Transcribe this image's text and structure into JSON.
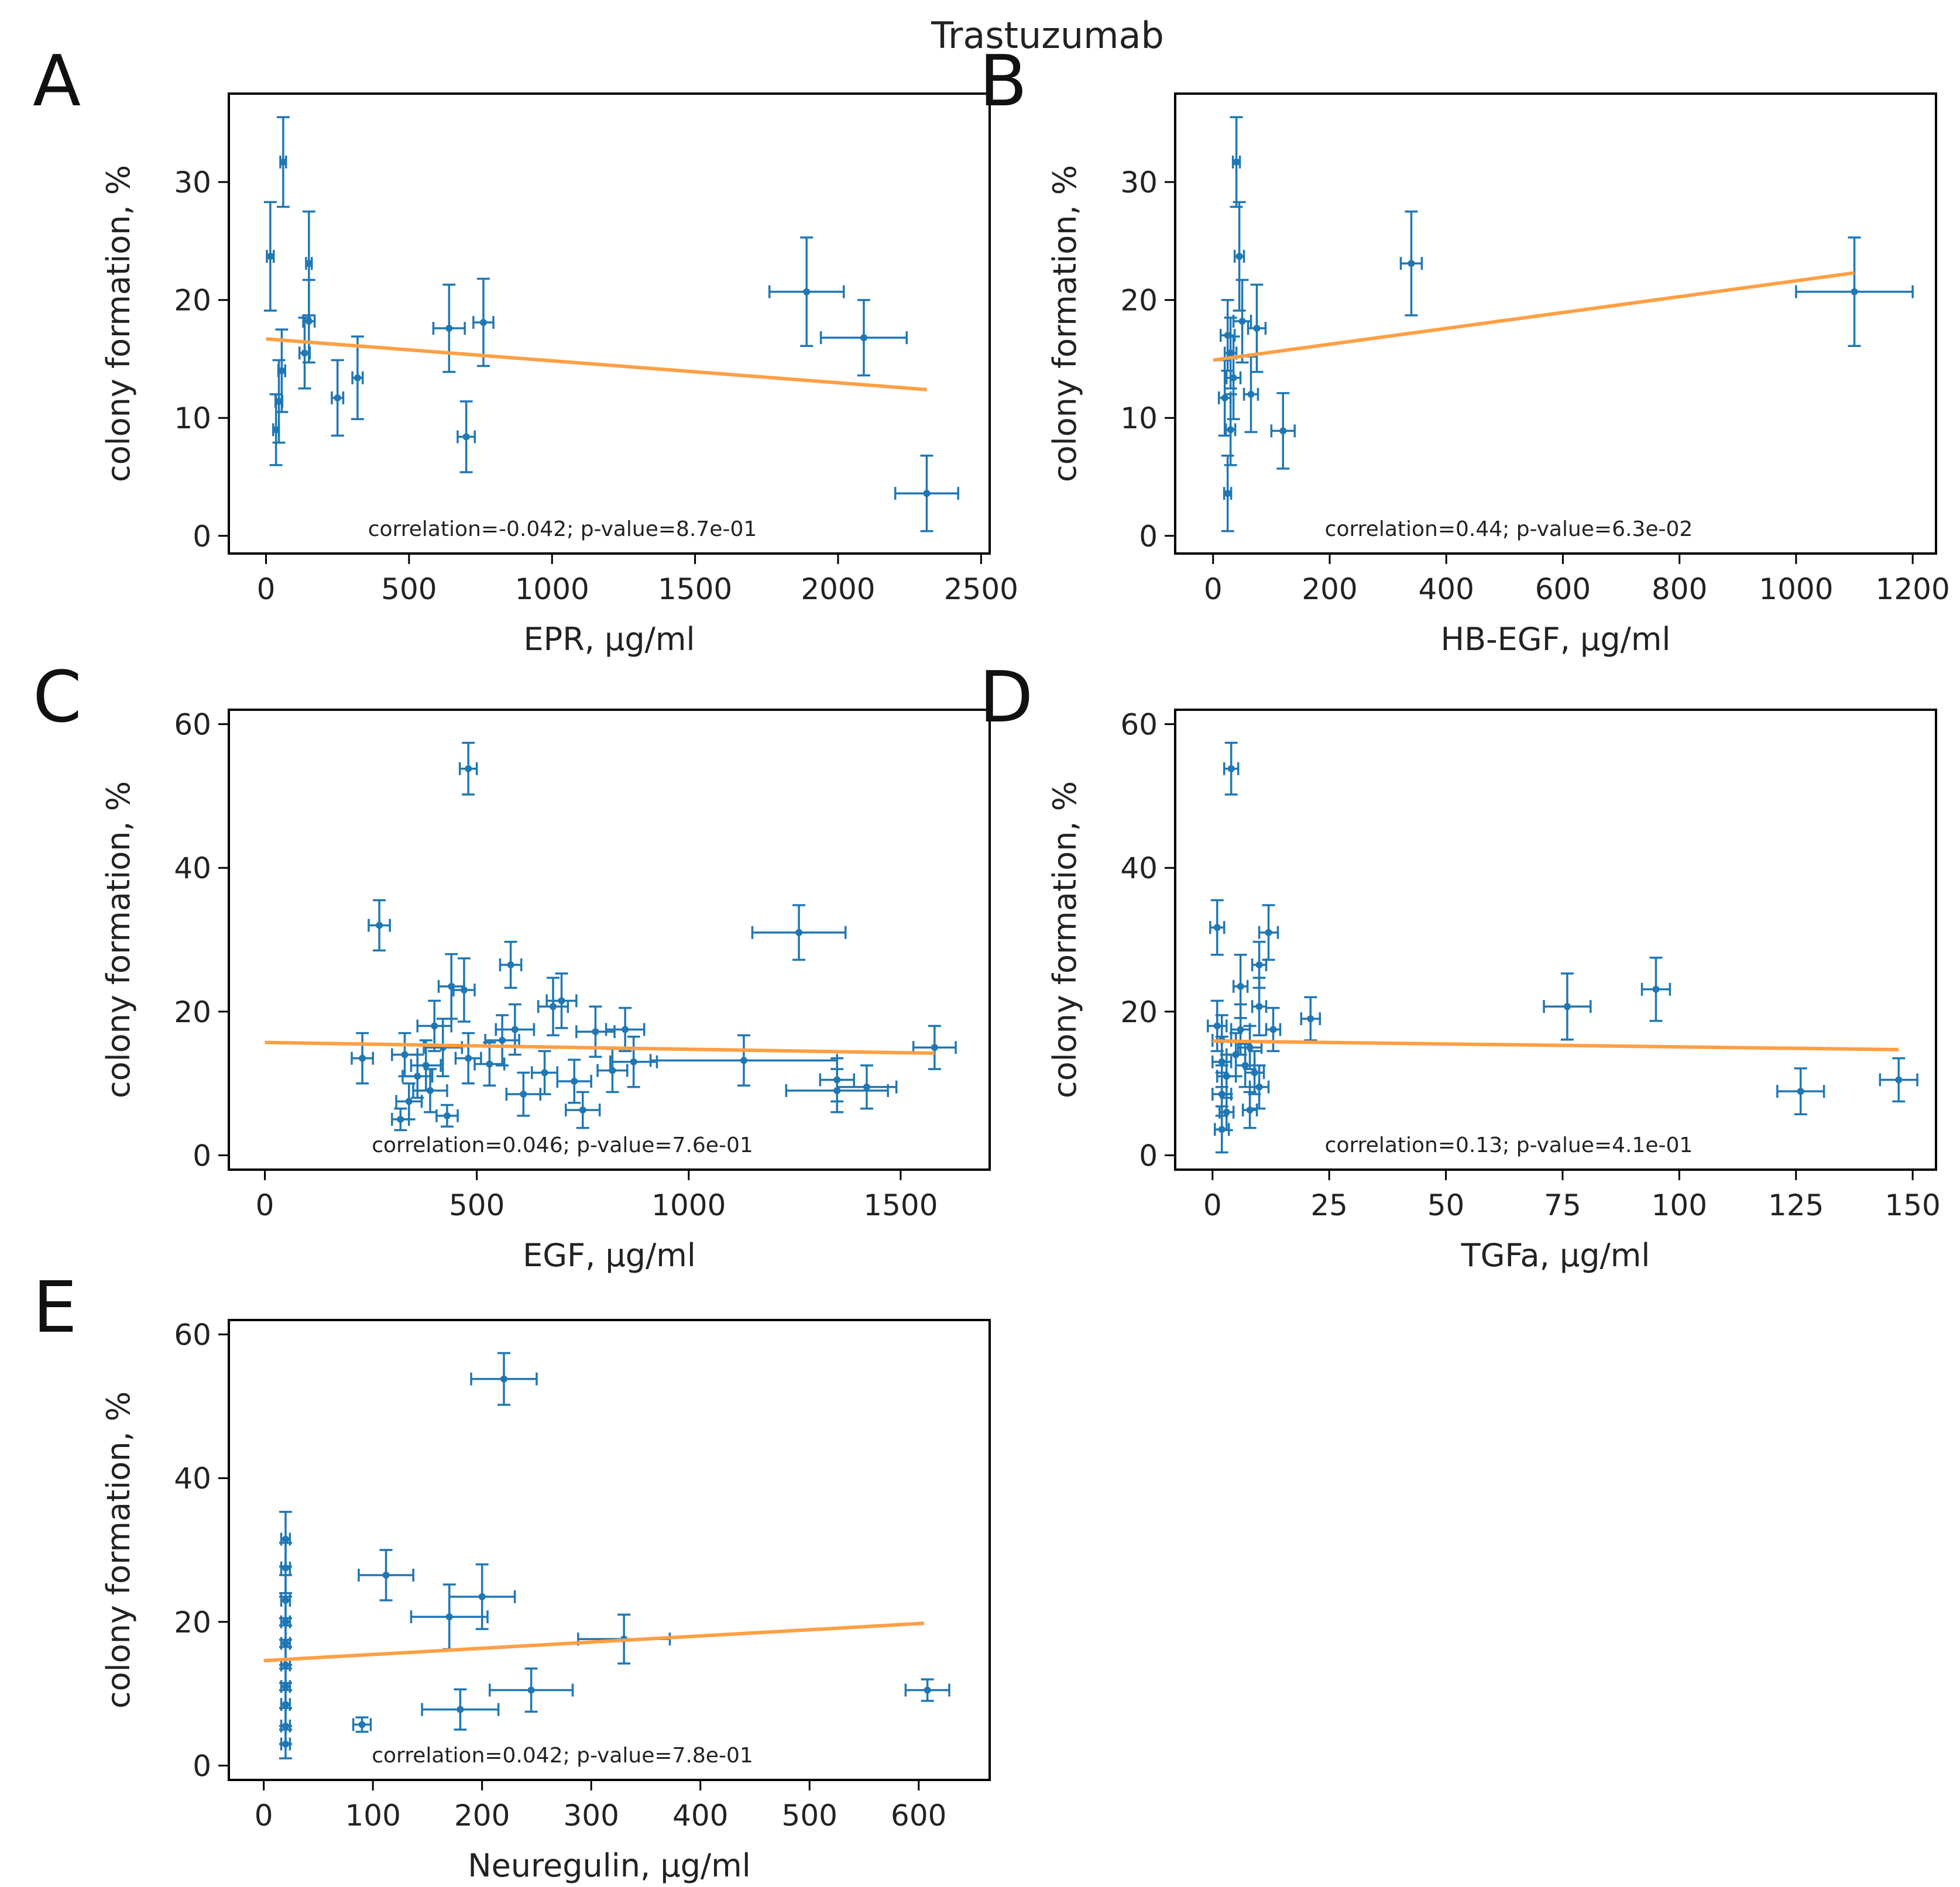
{
  "figure_title": "Trastuzumab",
  "colors": {
    "points": "#1f77b4",
    "fit_line": "#ff9f45",
    "frame": "#000000"
  },
  "chart_data": [
    {
      "panel": "A",
      "type": "scatter",
      "xlabel": "EPR, μg/ml",
      "ylabel": "colony formation, %",
      "xlim": [
        -130,
        2530
      ],
      "ylim": [
        -1.5,
        37.5
      ],
      "xticks": [
        0,
        500,
        1000,
        1500,
        2000,
        2500
      ],
      "yticks": [
        0,
        10,
        20,
        30
      ],
      "annotation": "correlation=-0.042; p-value=8.7e-01",
      "fit_line": [
        [
          0,
          16.7
        ],
        [
          2310,
          12.4
        ]
      ],
      "points": [
        {
          "x": 15,
          "y": 23.7,
          "xerr": 12,
          "yerr": 4.6
        },
        {
          "x": 60,
          "y": 31.7,
          "xerr": 10,
          "yerr": 3.8
        },
        {
          "x": 150,
          "y": 23.1,
          "xerr": 10,
          "yerr": 4.4
        },
        {
          "x": 35,
          "y": 9.0,
          "xerr": 10,
          "yerr": 3.0
        },
        {
          "x": 45,
          "y": 11.4,
          "xerr": 12,
          "yerr": 3.5
        },
        {
          "x": 55,
          "y": 14.0,
          "xerr": 12,
          "yerr": 3.5
        },
        {
          "x": 135,
          "y": 15.5,
          "xerr": 18,
          "yerr": 3.0
        },
        {
          "x": 150,
          "y": 18.2,
          "xerr": 20,
          "yerr": 3.5
        },
        {
          "x": 250,
          "y": 11.7,
          "xerr": 20,
          "yerr": 3.2
        },
        {
          "x": 320,
          "y": 13.4,
          "xerr": 18,
          "yerr": 3.5
        },
        {
          "x": 640,
          "y": 17.6,
          "xerr": 55,
          "yerr": 3.7
        },
        {
          "x": 700,
          "y": 8.4,
          "xerr": 30,
          "yerr": 3.0
        },
        {
          "x": 760,
          "y": 18.1,
          "xerr": 35,
          "yerr": 3.7
        },
        {
          "x": 1890,
          "y": 20.7,
          "xerr": 130,
          "yerr": 4.6
        },
        {
          "x": 2090,
          "y": 16.8,
          "xerr": 150,
          "yerr": 3.2
        },
        {
          "x": 2310,
          "y": 3.6,
          "xerr": 110,
          "yerr": 3.2
        }
      ]
    },
    {
      "panel": "B",
      "type": "scatter",
      "xlabel": "HB-EGF, μg/ml",
      "ylabel": "colony formation, %",
      "xlim": [
        -65,
        1240
      ],
      "ylim": [
        -1.5,
        37.5
      ],
      "xticks": [
        0,
        200,
        400,
        600,
        800,
        1000,
        1200
      ],
      "yticks": [
        0,
        10,
        20,
        30
      ],
      "annotation": "correlation=0.44; p-value=6.3e-02",
      "fit_line": [
        [
          0,
          14.9
        ],
        [
          1100,
          22.3
        ]
      ],
      "points": [
        {
          "x": 40,
          "y": 31.7,
          "xerr": 6,
          "yerr": 3.8
        },
        {
          "x": 45,
          "y": 23.7,
          "xerr": 8,
          "yerr": 4.6
        },
        {
          "x": 25,
          "y": 17.0,
          "xerr": 12,
          "yerr": 3.0
        },
        {
          "x": 30,
          "y": 15.5,
          "xerr": 10,
          "yerr": 3.0
        },
        {
          "x": 35,
          "y": 13.4,
          "xerr": 12,
          "yerr": 3.5
        },
        {
          "x": 20,
          "y": 11.7,
          "xerr": 10,
          "yerr": 3.2
        },
        {
          "x": 30,
          "y": 9.0,
          "xerr": 8,
          "yerr": 3.0
        },
        {
          "x": 25,
          "y": 3.6,
          "xerr": 6,
          "yerr": 3.2
        },
        {
          "x": 50,
          "y": 18.2,
          "xerr": 15,
          "yerr": 3.5
        },
        {
          "x": 65,
          "y": 12.0,
          "xerr": 12,
          "yerr": 3.2
        },
        {
          "x": 75,
          "y": 17.6,
          "xerr": 15,
          "yerr": 3.7
        },
        {
          "x": 120,
          "y": 8.9,
          "xerr": 20,
          "yerr": 3.2
        },
        {
          "x": 340,
          "y": 23.1,
          "xerr": 18,
          "yerr": 4.4
        },
        {
          "x": 1100,
          "y": 20.7,
          "xerr": 100,
          "yerr": 4.6
        }
      ]
    },
    {
      "panel": "C",
      "type": "scatter",
      "xlabel": "EGF, μg/ml",
      "ylabel": "colony formation, %",
      "xlim": [
        -85,
        1710
      ],
      "ylim": [
        -2,
        62
      ],
      "xticks": [
        0,
        500,
        1000,
        1500
      ],
      "yticks": [
        0,
        20,
        40,
        60
      ],
      "annotation": "correlation=0.046; p-value=7.6e-01",
      "fit_line": [
        [
          0,
          15.7
        ],
        [
          1580,
          14.2
        ]
      ],
      "points": [
        {
          "x": 480,
          "y": 53.8,
          "xerr": 20,
          "yerr": 3.6
        },
        {
          "x": 270,
          "y": 32.0,
          "xerr": 25,
          "yerr": 3.5
        },
        {
          "x": 1260,
          "y": 31.0,
          "xerr": 110,
          "yerr": 3.8
        },
        {
          "x": 580,
          "y": 26.5,
          "xerr": 25,
          "yerr": 3.2
        },
        {
          "x": 440,
          "y": 23.5,
          "xerr": 30,
          "yerr": 4.5
        },
        {
          "x": 470,
          "y": 23.0,
          "xerr": 25,
          "yerr": 4.4
        },
        {
          "x": 680,
          "y": 20.7,
          "xerr": 35,
          "yerr": 4.0
        },
        {
          "x": 700,
          "y": 21.5,
          "xerr": 35,
          "yerr": 3.8
        },
        {
          "x": 230,
          "y": 13.5,
          "xerr": 25,
          "yerr": 3.5
        },
        {
          "x": 330,
          "y": 14.0,
          "xerr": 30,
          "yerr": 3.0
        },
        {
          "x": 400,
          "y": 18.0,
          "xerr": 40,
          "yerr": 3.5
        },
        {
          "x": 420,
          "y": 15.0,
          "xerr": 45,
          "yerr": 4.0
        },
        {
          "x": 360,
          "y": 11.0,
          "xerr": 35,
          "yerr": 3.0
        },
        {
          "x": 390,
          "y": 9.0,
          "xerr": 40,
          "yerr": 3.0
        },
        {
          "x": 380,
          "y": 12.5,
          "xerr": 35,
          "yerr": 3.5
        },
        {
          "x": 340,
          "y": 7.5,
          "xerr": 30,
          "yerr": 2.5
        },
        {
          "x": 320,
          "y": 5.0,
          "xerr": 20,
          "yerr": 1.5
        },
        {
          "x": 430,
          "y": 5.5,
          "xerr": 25,
          "yerr": 1.5
        },
        {
          "x": 480,
          "y": 13.5,
          "xerr": 30,
          "yerr": 3.5
        },
        {
          "x": 530,
          "y": 12.7,
          "xerr": 35,
          "yerr": 3.0
        },
        {
          "x": 560,
          "y": 16.0,
          "xerr": 40,
          "yerr": 3.5
        },
        {
          "x": 590,
          "y": 17.5,
          "xerr": 45,
          "yerr": 3.5
        },
        {
          "x": 610,
          "y": 8.5,
          "xerr": 40,
          "yerr": 3.0
        },
        {
          "x": 660,
          "y": 11.5,
          "xerr": 30,
          "yerr": 3.0
        },
        {
          "x": 730,
          "y": 10.3,
          "xerr": 40,
          "yerr": 3.0
        },
        {
          "x": 750,
          "y": 6.3,
          "xerr": 40,
          "yerr": 2.5
        },
        {
          "x": 780,
          "y": 17.2,
          "xerr": 45,
          "yerr": 3.5
        },
        {
          "x": 820,
          "y": 11.8,
          "xerr": 35,
          "yerr": 3.0
        },
        {
          "x": 850,
          "y": 17.5,
          "xerr": 45,
          "yerr": 3.0
        },
        {
          "x": 870,
          "y": 13.0,
          "xerr": 55,
          "yerr": 3.5
        },
        {
          "x": 1130,
          "y": 13.2,
          "xerr": 220,
          "yerr": 3.5
        },
        {
          "x": 1350,
          "y": 9.0,
          "xerr": 120,
          "yerr": 3.0
        },
        {
          "x": 1350,
          "y": 10.5,
          "xerr": 40,
          "yerr": 3.0
        },
        {
          "x": 1420,
          "y": 9.5,
          "xerr": 70,
          "yerr": 3.0
        },
        {
          "x": 1580,
          "y": 15.0,
          "xerr": 50,
          "yerr": 3.0
        }
      ]
    },
    {
      "panel": "D",
      "type": "scatter",
      "xlabel": "TGFa, μg/ml",
      "ylabel": "colony formation, %",
      "xlim": [
        -8,
        155
      ],
      "ylim": [
        -2,
        62
      ],
      "xticks": [
        0,
        25,
        50,
        75,
        100,
        125,
        150
      ],
      "yticks": [
        0,
        20,
        40,
        60
      ],
      "annotation": "correlation=0.13; p-value=4.1e-01",
      "fit_line": [
        [
          0,
          15.9
        ],
        [
          147,
          14.7
        ]
      ],
      "points": [
        {
          "x": 4,
          "y": 53.8,
          "xerr": 1.5,
          "yerr": 3.6
        },
        {
          "x": 1,
          "y": 31.7,
          "xerr": 1.5,
          "yerr": 3.8
        },
        {
          "x": 12,
          "y": 31.0,
          "xerr": 2.0,
          "yerr": 3.8
        },
        {
          "x": 10,
          "y": 26.5,
          "xerr": 1.5,
          "yerr": 3.2
        },
        {
          "x": 6,
          "y": 23.5,
          "xerr": 1.5,
          "yerr": 4.4
        },
        {
          "x": 10,
          "y": 20.7,
          "xerr": 1.5,
          "yerr": 4.0
        },
        {
          "x": 1,
          "y": 18.0,
          "xerr": 2.0,
          "yerr": 3.5
        },
        {
          "x": 2,
          "y": 16.0,
          "xerr": 2.0,
          "yerr": 3.5
        },
        {
          "x": 2,
          "y": 13.0,
          "xerr": 2.0,
          "yerr": 3.5
        },
        {
          "x": 3,
          "y": 11.0,
          "xerr": 2.0,
          "yerr": 3.0
        },
        {
          "x": 2,
          "y": 8.5,
          "xerr": 2.0,
          "yerr": 3.0
        },
        {
          "x": 3,
          "y": 6.0,
          "xerr": 1.5,
          "yerr": 2.5
        },
        {
          "x": 2,
          "y": 3.6,
          "xerr": 1.5,
          "yerr": 3.2
        },
        {
          "x": 5,
          "y": 14.0,
          "xerr": 2.0,
          "yerr": 3.0
        },
        {
          "x": 6,
          "y": 17.5,
          "xerr": 2.0,
          "yerr": 3.5
        },
        {
          "x": 7,
          "y": 12.5,
          "xerr": 2.0,
          "yerr": 3.0
        },
        {
          "x": 8,
          "y": 15.0,
          "xerr": 2.5,
          "yerr": 3.0
        },
        {
          "x": 8,
          "y": 6.3,
          "xerr": 1.5,
          "yerr": 2.5
        },
        {
          "x": 9,
          "y": 11.5,
          "xerr": 2.0,
          "yerr": 3.0
        },
        {
          "x": 10,
          "y": 9.5,
          "xerr": 2.0,
          "yerr": 3.0
        },
        {
          "x": 13,
          "y": 17.5,
          "xerr": 1.5,
          "yerr": 3.0
        },
        {
          "x": 21,
          "y": 19.0,
          "xerr": 2.0,
          "yerr": 3.0
        },
        {
          "x": 76,
          "y": 20.7,
          "xerr": 5,
          "yerr": 4.6
        },
        {
          "x": 95,
          "y": 23.1,
          "xerr": 3,
          "yerr": 4.4
        },
        {
          "x": 126,
          "y": 8.9,
          "xerr": 5,
          "yerr": 3.2
        },
        {
          "x": 147,
          "y": 10.5,
          "xerr": 4,
          "yerr": 3.0
        }
      ]
    },
    {
      "panel": "E",
      "type": "scatter",
      "xlabel": "Neuregulin, μg/ml",
      "ylabel": "colony formation, %",
      "xlim": [
        -32,
        665
      ],
      "ylim": [
        -2,
        62
      ],
      "xticks": [
        0,
        100,
        200,
        300,
        400,
        500,
        600
      ],
      "yticks": [
        0,
        20,
        40,
        60
      ],
      "annotation": "correlation=0.042; p-value=7.8e-01",
      "fit_line": [
        [
          0,
          14.6
        ],
        [
          605,
          19.8
        ]
      ],
      "points": [
        {
          "x": 220,
          "y": 53.8,
          "xerr": 30,
          "yerr": 3.6
        },
        {
          "x": 20,
          "y": 31.5,
          "xerr": 4,
          "yerr": 3.8
        },
        {
          "x": 20,
          "y": 27.5,
          "xerr": 4,
          "yerr": 3.5
        },
        {
          "x": 20,
          "y": 23.0,
          "xerr": 4,
          "yerr": 3.5
        },
        {
          "x": 20,
          "y": 20.0,
          "xerr": 4,
          "yerr": 3.5
        },
        {
          "x": 20,
          "y": 17.0,
          "xerr": 4,
          "yerr": 3.5
        },
        {
          "x": 20,
          "y": 14.0,
          "xerr": 4,
          "yerr": 3.5
        },
        {
          "x": 20,
          "y": 11.0,
          "xerr": 4,
          "yerr": 3.0
        },
        {
          "x": 20,
          "y": 8.5,
          "xerr": 4,
          "yerr": 3.0
        },
        {
          "x": 20,
          "y": 5.5,
          "xerr": 4,
          "yerr": 2.5
        },
        {
          "x": 20,
          "y": 3.0,
          "xerr": 4,
          "yerr": 2.0
        },
        {
          "x": 90,
          "y": 5.7,
          "xerr": 8,
          "yerr": 1.0
        },
        {
          "x": 112,
          "y": 26.5,
          "xerr": 25,
          "yerr": 3.5
        },
        {
          "x": 170,
          "y": 20.7,
          "xerr": 35,
          "yerr": 4.5
        },
        {
          "x": 200,
          "y": 23.5,
          "xerr": 30,
          "yerr": 4.5
        },
        {
          "x": 180,
          "y": 7.8,
          "xerr": 35,
          "yerr": 2.8
        },
        {
          "x": 245,
          "y": 10.5,
          "xerr": 38,
          "yerr": 3.0
        },
        {
          "x": 330,
          "y": 17.6,
          "xerr": 42,
          "yerr": 3.4
        },
        {
          "x": 608,
          "y": 10.5,
          "xerr": 20,
          "yerr": 1.5
        }
      ]
    }
  ]
}
